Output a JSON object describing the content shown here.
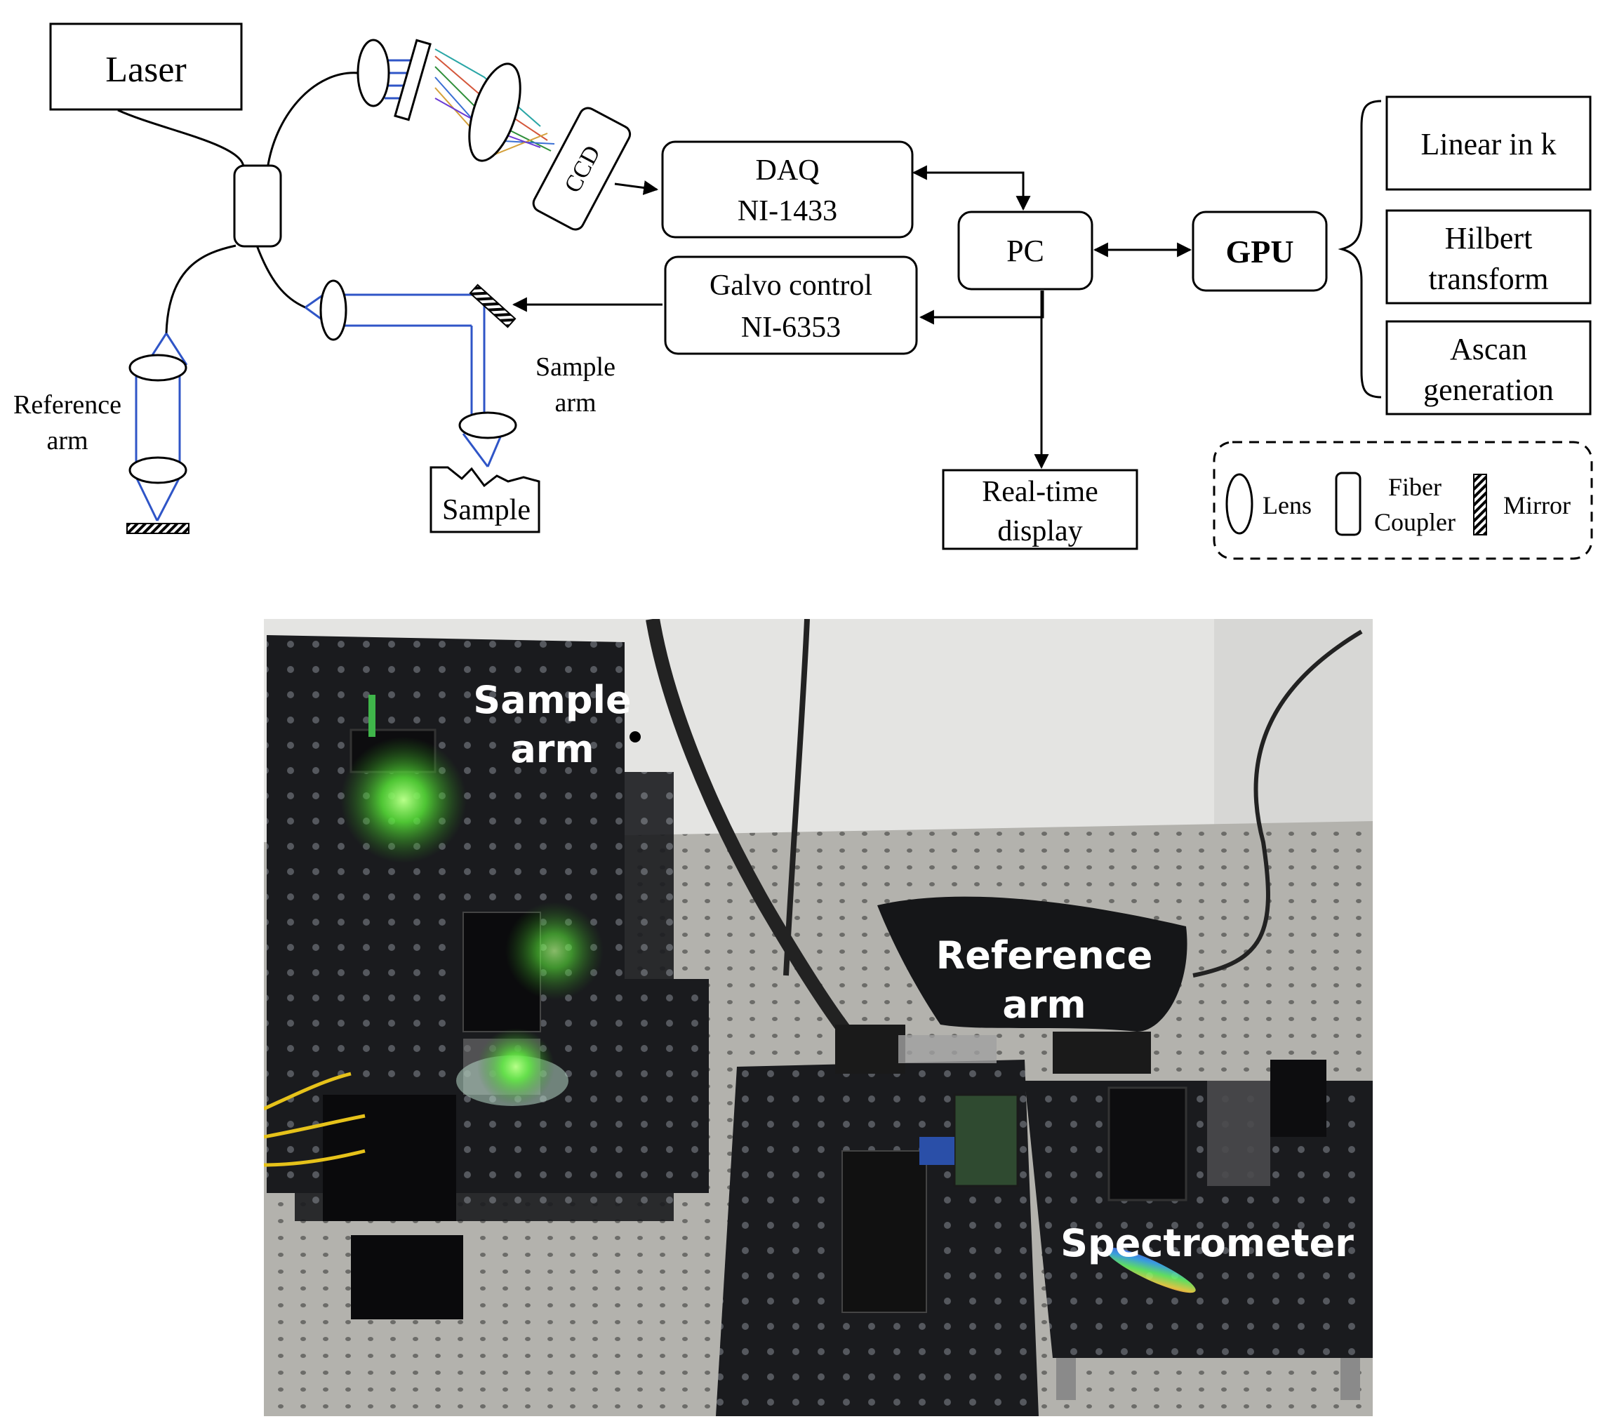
{
  "diagram": {
    "laser": "Laser",
    "ccd": "CCD",
    "daq": {
      "line1": "DAQ",
      "line2": "NI-1433"
    },
    "pc": "PC",
    "gpu": "GPU",
    "galvo": {
      "line1": "Galvo control",
      "line2": "NI-6353"
    },
    "realtime": {
      "line1": "Real-time",
      "line2": "display"
    },
    "gpu_tasks": [
      {
        "line1": "Linear  in k",
        "line2": ""
      },
      {
        "line1": "Hilbert",
        "line2": "transform"
      },
      {
        "line1": "Ascan",
        "line2": "generation"
      }
    ],
    "reference_arm": {
      "line1": "Reference",
      "line2": "arm"
    },
    "sample_arm": {
      "line1": "Sample",
      "line2": "arm"
    },
    "sample": "Sample",
    "legend": {
      "lens": "Lens",
      "fiber_coupler": {
        "line1": "Fiber",
        "line2": "Coupler"
      },
      "mirror": "Mirror"
    },
    "colors": {
      "beam": "#2f55c7",
      "line": "#000000"
    }
  },
  "photo": {
    "labels": {
      "sample_arm": {
        "line1": "Sample",
        "line2": "arm"
      },
      "reference_arm": {
        "line1": "Reference",
        "line2": "arm"
      },
      "spectrometer": "Spectrometer"
    },
    "colors": {
      "label": "#ffffff",
      "laser_glow": "#7cff4a"
    }
  }
}
